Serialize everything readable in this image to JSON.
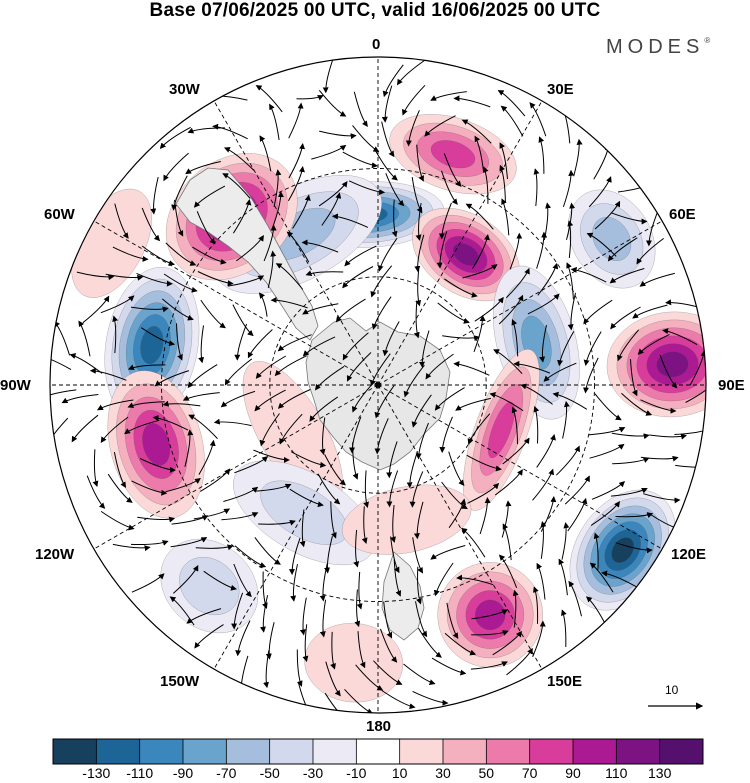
{
  "title": "Base 07/06/2025 00 UTC, valid 16/06/2025 00 UTC",
  "brand": "MODES",
  "brand_mark": "®",
  "longitude_labels": {
    "lon_0": "0",
    "lon_30E": "30E",
    "lon_60E": "60E",
    "lon_90E": "90E",
    "lon_120E": "120E",
    "lon_150E": "150E",
    "lon_180": "180",
    "lon_150W": "150W",
    "lon_120W": "120W",
    "lon_90W": "90W",
    "lon_60W": "60W",
    "lon_30W": "30W"
  },
  "vector_reference_label": "10",
  "colorbar": {
    "ticks": [
      "-130",
      "-110",
      "-90",
      "-70",
      "-50",
      "-30",
      "-10",
      "10",
      "30",
      "50",
      "70",
      "90",
      "110",
      "130"
    ],
    "colors": [
      "#17405f",
      "#1d6596",
      "#3b86bd",
      "#6aa3cc",
      "#a6bedd",
      "#d3d9ec",
      "#ecebf5",
      "#ffffff",
      "#fbd9d9",
      "#f5b0c0",
      "#ec7bab",
      "#d83d9b",
      "#ab1a92",
      "#7d1383",
      "#55106e"
    ]
  },
  "map": {
    "projection": "polar-stereographic (south pole)",
    "anomalies": [
      {
        "lon": 18,
        "colat": 0.74,
        "rx": 0.2,
        "ry": 0.11,
        "value": 85
      },
      {
        "lon": -3,
        "colat": 0.52,
        "rx": 0.23,
        "ry": 0.1,
        "value": -125
      },
      {
        "lon": -28,
        "colat": 0.52,
        "rx": 0.28,
        "ry": 0.14,
        "value": -60
      },
      {
        "lon": -41,
        "colat": 0.68,
        "rx": 0.22,
        "ry": 0.17,
        "value": 118
      },
      {
        "lon": 34,
        "colat": 0.48,
        "rx": 0.18,
        "ry": 0.12,
        "value": 112
      },
      {
        "lon": 58,
        "colat": 0.84,
        "rx": 0.16,
        "ry": 0.12,
        "value": -62
      },
      {
        "lon": 75,
        "colat": 0.5,
        "rx": 0.24,
        "ry": 0.12,
        "value": -80
      },
      {
        "lon": 86,
        "colat": 0.9,
        "rx": 0.16,
        "ry": 0.2,
        "value": 115
      },
      {
        "lon": 110,
        "colat": 0.4,
        "rx": 0.26,
        "ry": 0.08,
        "value": 82
      },
      {
        "lon": 124,
        "colat": 0.9,
        "rx": 0.2,
        "ry": 0.14,
        "value": -130
      },
      {
        "lon": 154,
        "colat": 0.78,
        "rx": 0.16,
        "ry": 0.16,
        "value": 92
      },
      {
        "lon": -80,
        "colat": 0.7,
        "rx": 0.24,
        "ry": 0.14,
        "value": -112
      },
      {
        "lon": -105,
        "colat": 0.7,
        "rx": 0.23,
        "ry": 0.14,
        "value": 104
      },
      {
        "lon": -120,
        "colat": 0.3,
        "rx": 0.25,
        "ry": 0.1,
        "value": 18
      },
      {
        "lon": -150,
        "colat": 0.45,
        "rx": 0.24,
        "ry": 0.12,
        "value": -34
      },
      {
        "lon": -140,
        "colat": 0.8,
        "rx": 0.16,
        "ry": 0.13,
        "value": -42
      },
      {
        "lon": -175,
        "colat": 0.85,
        "rx": 0.15,
        "ry": 0.12,
        "value": 12
      },
      {
        "lon": 168,
        "colat": 0.42,
        "rx": 0.2,
        "ry": 0.1,
        "value": 20
      },
      {
        "lon": -62,
        "colat": 0.92,
        "rx": 0.18,
        "ry": 0.1,
        "value": 12
      }
    ]
  }
}
